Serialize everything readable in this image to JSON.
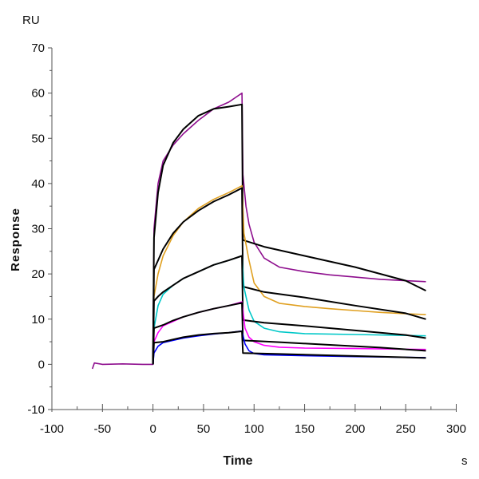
{
  "chart_data": {
    "type": "line",
    "title": "",
    "xlabel": "Time",
    "xunit": "s",
    "ylabel": "Response",
    "yunit": "RU",
    "xlim": [
      -100,
      300
    ],
    "ylim": [
      -10,
      70
    ],
    "xticks": [
      -100,
      -50,
      0,
      50,
      100,
      150,
      200,
      250,
      300
    ],
    "yticks": [
      -10,
      0,
      10,
      20,
      30,
      40,
      50,
      60,
      70
    ],
    "xtick_labels": [
      "-100",
      "-50",
      "0",
      "50",
      "100",
      "150",
      "200",
      "250",
      "300"
    ],
    "ytick_labels": [
      "-10",
      "0",
      "10",
      "20",
      "30",
      "40",
      "50",
      "60",
      "70"
    ],
    "grid": false,
    "legend": "none",
    "series": [
      {
        "kind": "measured",
        "color": "#8E0E8E",
        "points": [
          [
            -60,
            -1
          ],
          [
            -58,
            0.3
          ],
          [
            -50,
            0
          ],
          [
            -30,
            0.1
          ],
          [
            -10,
            0
          ],
          [
            0,
            0
          ],
          [
            1,
            30
          ],
          [
            5,
            40
          ],
          [
            10,
            45
          ],
          [
            20,
            48.5
          ],
          [
            30,
            51
          ],
          [
            45,
            54
          ],
          [
            60,
            56.5
          ],
          [
            75,
            58
          ],
          [
            88,
            60
          ],
          [
            89,
            42
          ],
          [
            92,
            35
          ],
          [
            95,
            31
          ],
          [
            100,
            27
          ],
          [
            110,
            23.5
          ],
          [
            125,
            21.5
          ],
          [
            150,
            20.5
          ],
          [
            175,
            19.8
          ],
          [
            200,
            19.3
          ],
          [
            225,
            18.8
          ],
          [
            250,
            18.5
          ],
          [
            270,
            18.3
          ]
        ]
      },
      {
        "kind": "fit",
        "color": "#000000",
        "points": [
          [
            0,
            0
          ],
          [
            1,
            28
          ],
          [
            5,
            38
          ],
          [
            10,
            44
          ],
          [
            20,
            49
          ],
          [
            30,
            52
          ],
          [
            45,
            55
          ],
          [
            60,
            56.5
          ],
          [
            75,
            57
          ],
          [
            88,
            57.5
          ],
          [
            89,
            27.5
          ],
          [
            110,
            26
          ],
          [
            150,
            24
          ],
          [
            200,
            21.5
          ],
          [
            250,
            18.5
          ],
          [
            270,
            16.3
          ]
        ]
      },
      {
        "kind": "measured",
        "color": "#E0A020",
        "points": [
          [
            0,
            0
          ],
          [
            1,
            15
          ],
          [
            5,
            20
          ],
          [
            10,
            24
          ],
          [
            20,
            28.5
          ],
          [
            30,
            31.5
          ],
          [
            45,
            34.5
          ],
          [
            60,
            36.5
          ],
          [
            75,
            38
          ],
          [
            88,
            39.5
          ],
          [
            90,
            29
          ],
          [
            95,
            23
          ],
          [
            100,
            18
          ],
          [
            110,
            15
          ],
          [
            125,
            13.5
          ],
          [
            150,
            12.8
          ],
          [
            175,
            12.3
          ],
          [
            200,
            11.9
          ],
          [
            225,
            11.5
          ],
          [
            250,
            11.2
          ],
          [
            270,
            11
          ]
        ]
      },
      {
        "kind": "fit",
        "color": "#000000",
        "points": [
          [
            0,
            0
          ],
          [
            1,
            21
          ],
          [
            5,
            23
          ],
          [
            10,
            25.5
          ],
          [
            20,
            29
          ],
          [
            30,
            31.5
          ],
          [
            45,
            34
          ],
          [
            60,
            36
          ],
          [
            75,
            37.5
          ],
          [
            88,
            39
          ],
          [
            89,
            17.2
          ],
          [
            110,
            16
          ],
          [
            150,
            14.8
          ],
          [
            200,
            13
          ],
          [
            250,
            11.3
          ],
          [
            270,
            10
          ]
        ]
      },
      {
        "kind": "measured",
        "color": "#00C8C8",
        "points": [
          [
            0,
            0
          ],
          [
            1,
            8
          ],
          [
            5,
            13
          ],
          [
            10,
            15.5
          ],
          [
            20,
            17.5
          ],
          [
            30,
            19
          ],
          [
            45,
            20.5
          ],
          [
            60,
            22
          ],
          [
            75,
            23
          ],
          [
            88,
            24
          ],
          [
            90,
            17
          ],
          [
            95,
            12
          ],
          [
            100,
            9.5
          ],
          [
            110,
            8
          ],
          [
            125,
            7.2
          ],
          [
            150,
            6.8
          ],
          [
            200,
            6.6
          ],
          [
            270,
            6.3
          ]
        ]
      },
      {
        "kind": "fit",
        "color": "#000000",
        "points": [
          [
            0,
            0
          ],
          [
            1,
            14
          ],
          [
            5,
            15
          ],
          [
            10,
            16
          ],
          [
            20,
            17.5
          ],
          [
            30,
            19
          ],
          [
            45,
            20.5
          ],
          [
            60,
            22
          ],
          [
            75,
            23
          ],
          [
            88,
            24
          ],
          [
            89,
            9.8
          ],
          [
            110,
            9.2
          ],
          [
            150,
            8.5
          ],
          [
            200,
            7.5
          ],
          [
            250,
            6.5
          ],
          [
            270,
            5.8
          ]
        ]
      },
      {
        "kind": "measured",
        "color": "#FF00FF",
        "points": [
          [
            0,
            0
          ],
          [
            1,
            5
          ],
          [
            5,
            7
          ],
          [
            10,
            8.5
          ],
          [
            20,
            9.5
          ],
          [
            30,
            10.5
          ],
          [
            45,
            11.5
          ],
          [
            60,
            12.3
          ],
          [
            75,
            13
          ],
          [
            88,
            13.8
          ],
          [
            91,
            8
          ],
          [
            95,
            6
          ],
          [
            100,
            5
          ],
          [
            110,
            4.2
          ],
          [
            125,
            3.8
          ],
          [
            150,
            3.6
          ],
          [
            200,
            3.5
          ],
          [
            270,
            3.3
          ]
        ]
      },
      {
        "kind": "fit",
        "color": "#000000",
        "points": [
          [
            0,
            0
          ],
          [
            1,
            8
          ],
          [
            10,
            8.7
          ],
          [
            20,
            9.7
          ],
          [
            30,
            10.5
          ],
          [
            45,
            11.5
          ],
          [
            60,
            12.3
          ],
          [
            75,
            13
          ],
          [
            88,
            13.6
          ],
          [
            89,
            5.3
          ],
          [
            125,
            4.9
          ],
          [
            175,
            4.3
          ],
          [
            225,
            3.7
          ],
          [
            270,
            3
          ]
        ]
      },
      {
        "kind": "measured",
        "color": "#0000FF",
        "points": [
          [
            0,
            0
          ],
          [
            1,
            2.5
          ],
          [
            5,
            4
          ],
          [
            10,
            4.8
          ],
          [
            20,
            5.3
          ],
          [
            30,
            5.8
          ],
          [
            45,
            6.3
          ],
          [
            60,
            6.7
          ],
          [
            75,
            7
          ],
          [
            88,
            7.4
          ],
          [
            91,
            4.5
          ],
          [
            95,
            3
          ],
          [
            100,
            2.4
          ],
          [
            110,
            2.1
          ],
          [
            150,
            1.9
          ],
          [
            200,
            1.7
          ],
          [
            270,
            1.5
          ]
        ]
      },
      {
        "kind": "fit",
        "color": "#000000",
        "points": [
          [
            0,
            0
          ],
          [
            1,
            4.8
          ],
          [
            10,
            5
          ],
          [
            20,
            5.5
          ],
          [
            30,
            6
          ],
          [
            45,
            6.5
          ],
          [
            60,
            6.8
          ],
          [
            75,
            7
          ],
          [
            88,
            7.3
          ],
          [
            89,
            2.5
          ],
          [
            125,
            2.3
          ],
          [
            175,
            2
          ],
          [
            225,
            1.7
          ],
          [
            270,
            1.4
          ]
        ]
      }
    ]
  }
}
